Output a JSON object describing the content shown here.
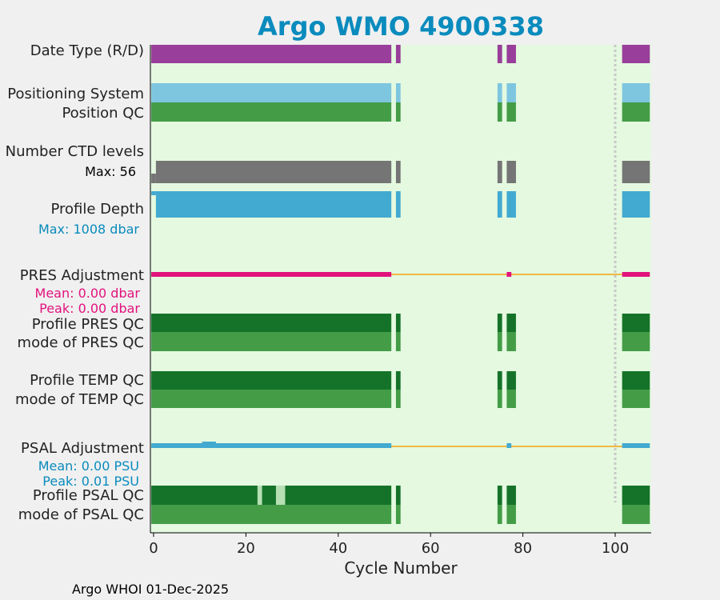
{
  "chart_data": {
    "type": "bar",
    "title": "Argo WMO 4900338",
    "xlabel": "Cycle Number",
    "xlim": [
      -0.5,
      107.5
    ],
    "xticks": [
      0,
      20,
      40,
      60,
      80,
      100
    ],
    "xtick_labels": [
      "0",
      "20",
      "40",
      "60",
      "80",
      "100"
    ],
    "vline_x": 100,
    "footer": "Argo WHOI 01-Dec-2025",
    "colors": {
      "background": "#e4f9e0",
      "figure": "#f0f0f0",
      "title": "#0a8bbd",
      "date_type": "#993e9a",
      "positioning": "#7ec6e0",
      "qc_good": "#449c47",
      "qc_dark": "#157329",
      "qc_light": "#b7dfb4",
      "ctd": "#757575",
      "depth": "#42aad0",
      "pres_adj": "#e2137d",
      "psal_adj": "#42aad0",
      "adj_line": "#f0b841",
      "vline": "#c8c8c8"
    },
    "labels": {
      "date_type": "Date Type (R/D)",
      "positioning": "Positioning System",
      "position_qc": "Position QC",
      "n_ctd": "Number CTD levels",
      "n_ctd_max": "Max: 56",
      "profile_depth": "Profile Depth",
      "depth_max": "Max: 1008 dbar",
      "pres_adj": "PRES Adjustment",
      "pres_mean": "Mean: 0.00 dbar",
      "pres_peak": "Peak: 0.00 dbar",
      "profile_pres_qc": "Profile PRES QC",
      "mode_pres_qc": "mode of PRES QC",
      "profile_temp_qc": "Profile TEMP QC",
      "mode_temp_qc": "mode of TEMP QC",
      "psal_adj": "PSAL Adjustment",
      "psal_mean": "Mean: 0.00 PSU",
      "psal_peak": "Peak: 0.01 PSU",
      "profile_psal_qc": "Profile PSAL QC",
      "mode_psal_qc": "mode of PSAL QC"
    },
    "cycle_segments": [
      [
        0,
        51
      ],
      [
        53,
        53
      ],
      [
        75,
        75
      ],
      [
        77,
        78
      ],
      [
        102,
        107
      ]
    ],
    "date_type_segments": [
      [
        0,
        51
      ],
      [
        53,
        53
      ],
      [
        75,
        75
      ],
      [
        77,
        78
      ],
      [
        102,
        107
      ]
    ],
    "ctd_small_segment": [
      0,
      0
    ],
    "ctd_segments": [
      [
        1,
        51
      ],
      [
        53,
        53
      ],
      [
        75,
        75
      ],
      [
        77,
        78
      ],
      [
        102,
        107
      ]
    ],
    "depth_small_segment": [
      0,
      0
    ],
    "depth_segments": [
      [
        1,
        51
      ],
      [
        53,
        53
      ],
      [
        75,
        75
      ],
      [
        77,
        78
      ],
      [
        102,
        107
      ]
    ],
    "pres_adj_segments": [
      [
        0,
        51
      ],
      [
        77,
        77
      ],
      [
        102,
        107
      ]
    ],
    "psal_adj_segments": [
      [
        0,
        51
      ],
      [
        77,
        77
      ],
      [
        102,
        107
      ]
    ],
    "psal_adj_bump": [
      11,
      13
    ],
    "adj_line_range": [
      0,
      107
    ],
    "psal_qc_light_segments": [
      [
        23,
        23
      ],
      [
        27,
        28
      ]
    ]
  }
}
